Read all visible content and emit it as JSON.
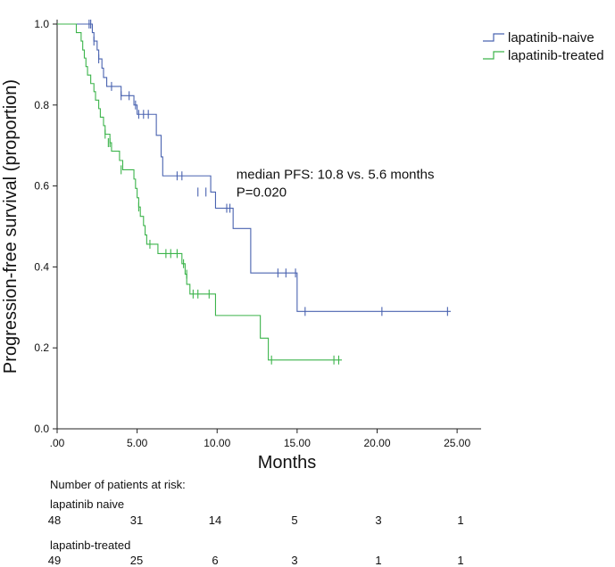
{
  "chart_data": {
    "type": "line",
    "subtype": "kaplan-meier",
    "xlabel": "Months",
    "ylabel": "Progression-free survival (proportion)",
    "xlim": [
      0,
      26.5
    ],
    "ylim": [
      0,
      1.0
    ],
    "xticks": [
      0,
      5,
      10,
      15,
      20,
      25
    ],
    "xtick_labels": [
      ".00",
      "5.00",
      "10.00",
      "15.00",
      "20.00",
      "25.00"
    ],
    "yticks": [
      0,
      0.2,
      0.4,
      0.6,
      0.8,
      1.0
    ],
    "ytick_labels": [
      "0.0",
      "0.2",
      "0.4",
      "0.6",
      "0.8",
      "1.0"
    ],
    "legend_position": "top-right",
    "annotation": {
      "line1": "median PFS: 10.8 vs. 5.6 months",
      "line2": "P=0.020",
      "x": 11.2,
      "y": 0.6
    },
    "series": [
      {
        "name": "lapatinib-naive",
        "color": "#4a63b0",
        "steps": [
          [
            0,
            1.0
          ],
          [
            2.2,
            0.979
          ],
          [
            2.3,
            0.958
          ],
          [
            2.5,
            0.936
          ],
          [
            2.6,
            0.914
          ],
          [
            2.8,
            0.891
          ],
          [
            2.9,
            0.868
          ],
          [
            3.1,
            0.846
          ],
          [
            4.0,
            0.823
          ],
          [
            4.8,
            0.8
          ],
          [
            5.0,
            0.777
          ],
          [
            6.2,
            0.725
          ],
          [
            6.5,
            0.672
          ],
          [
            6.6,
            0.625
          ],
          [
            9.6,
            0.585
          ],
          [
            9.9,
            0.545
          ],
          [
            11.0,
            0.495
          ],
          [
            12.1,
            0.385
          ],
          [
            15.0,
            0.29
          ],
          [
            24.6,
            0.29
          ]
        ],
        "censor": [
          [
            2.0,
            1.0
          ],
          [
            2.1,
            1.0
          ],
          [
            2.3,
            0.958
          ],
          [
            2.6,
            0.914
          ],
          [
            3.4,
            0.846
          ],
          [
            4.0,
            0.823
          ],
          [
            4.5,
            0.823
          ],
          [
            4.9,
            0.8
          ],
          [
            5.1,
            0.777
          ],
          [
            5.4,
            0.777
          ],
          [
            5.7,
            0.777
          ],
          [
            7.5,
            0.625
          ],
          [
            7.8,
            0.625
          ],
          [
            8.8,
            0.585
          ],
          [
            9.3,
            0.585
          ],
          [
            10.6,
            0.545
          ],
          [
            10.8,
            0.545
          ],
          [
            13.8,
            0.385
          ],
          [
            14.3,
            0.385
          ],
          [
            14.9,
            0.385
          ],
          [
            15.5,
            0.29
          ],
          [
            20.3,
            0.29
          ],
          [
            24.4,
            0.29
          ]
        ]
      },
      {
        "name": "lapatinib-treated",
        "color": "#3cb44b",
        "steps": [
          [
            0,
            1.0
          ],
          [
            1.2,
            0.979
          ],
          [
            1.5,
            0.958
          ],
          [
            1.6,
            0.936
          ],
          [
            1.7,
            0.916
          ],
          [
            1.8,
            0.895
          ],
          [
            1.9,
            0.874
          ],
          [
            2.1,
            0.853
          ],
          [
            2.3,
            0.833
          ],
          [
            2.4,
            0.812
          ],
          [
            2.6,
            0.791
          ],
          [
            2.7,
            0.77
          ],
          [
            2.9,
            0.749
          ],
          [
            3.0,
            0.728
          ],
          [
            3.3,
            0.707
          ],
          [
            3.4,
            0.686
          ],
          [
            3.9,
            0.663
          ],
          [
            4.1,
            0.64
          ],
          [
            4.8,
            0.617
          ],
          [
            4.9,
            0.594
          ],
          [
            5.0,
            0.571
          ],
          [
            5.1,
            0.548
          ],
          [
            5.2,
            0.525
          ],
          [
            5.4,
            0.502
          ],
          [
            5.5,
            0.479
          ],
          [
            5.6,
            0.456
          ],
          [
            6.3,
            0.433
          ],
          [
            7.8,
            0.408
          ],
          [
            8.0,
            0.382
          ],
          [
            8.1,
            0.357
          ],
          [
            8.3,
            0.333
          ],
          [
            9.9,
            0.28
          ],
          [
            12.7,
            0.224
          ],
          [
            13.2,
            0.17
          ],
          [
            17.8,
            0.17
          ]
        ],
        "censor": [
          [
            3.0,
            0.728
          ],
          [
            3.2,
            0.707
          ],
          [
            3.3,
            0.707
          ],
          [
            4.0,
            0.64
          ],
          [
            5.1,
            0.548
          ],
          [
            5.8,
            0.456
          ],
          [
            6.8,
            0.433
          ],
          [
            7.1,
            0.433
          ],
          [
            7.5,
            0.433
          ],
          [
            7.9,
            0.408
          ],
          [
            8.1,
            0.382
          ],
          [
            8.5,
            0.333
          ],
          [
            8.8,
            0.333
          ],
          [
            9.5,
            0.333
          ],
          [
            13.4,
            0.17
          ],
          [
            17.3,
            0.17
          ],
          [
            17.6,
            0.17
          ]
        ]
      }
    ]
  },
  "risk_table": {
    "title": "Number of patients at risk:",
    "groups": [
      {
        "label": "lapatinib naive",
        "values": [
          "48",
          "31",
          "14",
          "5",
          "3",
          "1"
        ]
      },
      {
        "label": "lapatinb-treated",
        "values": [
          "49",
          "25",
          "6",
          "3",
          "1",
          "1"
        ]
      }
    ]
  }
}
